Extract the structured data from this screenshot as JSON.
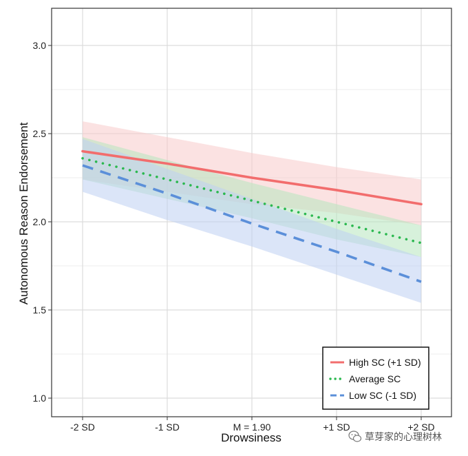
{
  "chart_data": {
    "type": "line",
    "title": "",
    "xlabel": "Drowsiness",
    "ylabel": "Autonomous Reason Endorsement",
    "categories": [
      "-2 SD",
      "-1 SD",
      "M = 1.90",
      "+1 SD",
      "+2 SD"
    ],
    "x": [
      0,
      1,
      2,
      3,
      4
    ],
    "ylim": [
      0.9,
      3.2
    ],
    "yticks": [
      "1.0",
      "1.5",
      "2.0",
      "2.5",
      "3.0"
    ],
    "ytick_values": [
      1.0,
      1.5,
      2.0,
      2.5,
      3.0
    ],
    "grid": true,
    "legend_position": "bottom-right",
    "series": [
      {
        "name": "High SC (+1 SD)",
        "style": "solid",
        "color": "#f26d6d",
        "band_color": "#f8caca",
        "values": [
          2.4,
          2.33,
          2.25,
          2.18,
          2.1
        ],
        "ci_upper": [
          2.57,
          2.48,
          2.39,
          2.31,
          2.24
        ],
        "ci_lower": [
          2.24,
          2.17,
          2.1,
          2.05,
          1.98
        ]
      },
      {
        "name": "Average SC",
        "style": "dotted",
        "color": "#2bb84f",
        "band_color": "#b7e6bd",
        "values": [
          2.36,
          2.24,
          2.12,
          2.0,
          1.88
        ],
        "ci_upper": [
          2.48,
          2.35,
          2.22,
          2.1,
          1.98
        ],
        "ci_lower": [
          2.24,
          2.13,
          2.02,
          1.9,
          1.8
        ]
      },
      {
        "name": "Low SC (-1 SD)",
        "style": "dashed",
        "color": "#5b8fd9",
        "band_color": "#bdd0f3",
        "values": [
          2.32,
          2.16,
          1.99,
          1.83,
          1.66
        ],
        "ci_upper": [
          2.47,
          2.3,
          2.13,
          1.96,
          1.8
        ],
        "ci_lower": [
          2.17,
          2.01,
          1.86,
          1.7,
          1.54
        ]
      }
    ]
  },
  "watermark": {
    "text": "草芽家的心理树林",
    "icon": "wechat-icon"
  }
}
